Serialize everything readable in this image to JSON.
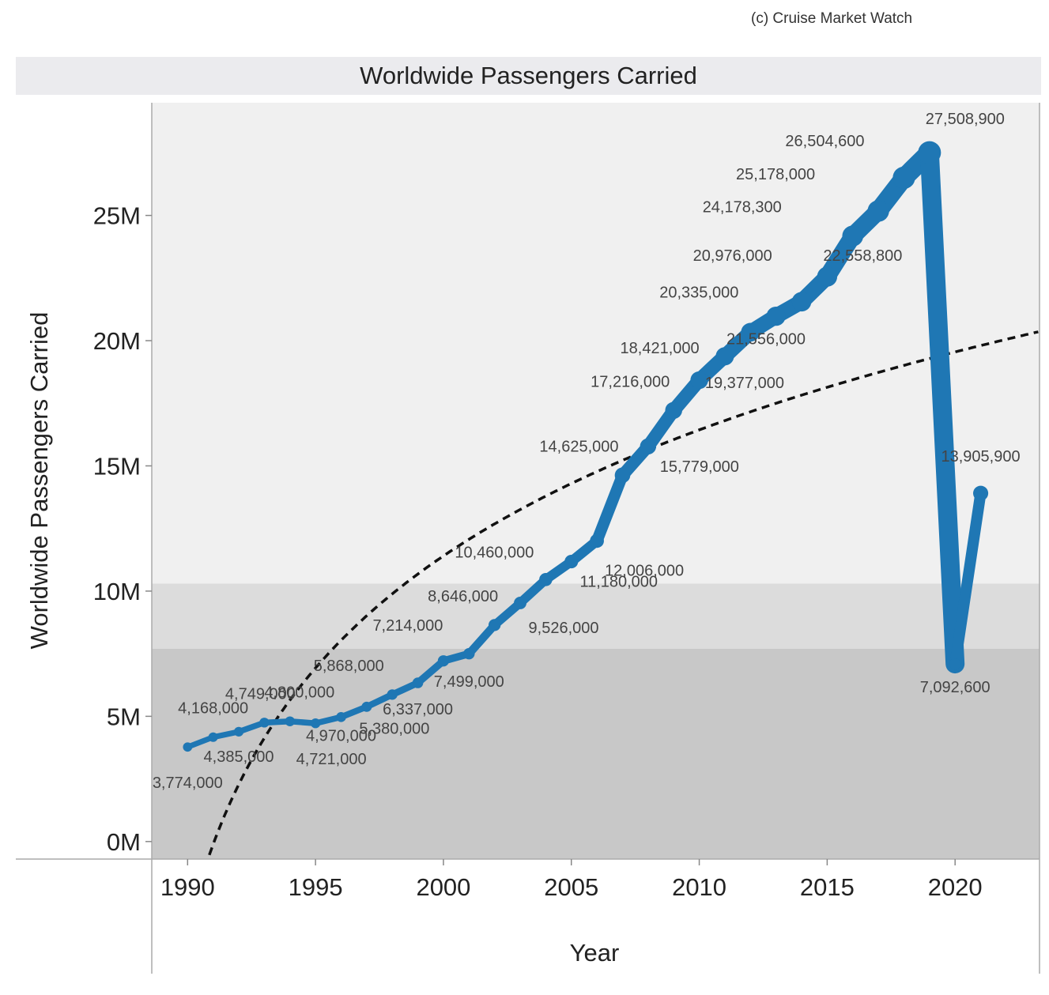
{
  "credit": "(c) Cruise Market Watch",
  "colors": {
    "line": "#1f77b4",
    "trend": "#111111",
    "band_top": "#f0f0f0",
    "band_mid": "#dcdcdc",
    "band_low": "#c8c8c8",
    "title_bar": "#ebebee"
  },
  "chart_data": {
    "type": "line",
    "title": "Worldwide Passengers Carried",
    "xlabel": "Year",
    "ylabel": "Worldwide Passengers Carried",
    "xlim": [
      1988.6,
      2023.3
    ],
    "ylim": [
      -700000,
      29500000
    ],
    "x_ticks": [
      "1990",
      "1995",
      "2000",
      "2005",
      "2010",
      "2015",
      "2020"
    ],
    "y_ticks": [
      "0M",
      "5M",
      "10M",
      "15M",
      "20M",
      "25M"
    ],
    "reference_bands": [
      10300000,
      7700000
    ],
    "trend_line": "logarithmic",
    "series": [
      {
        "values": [
          {
            "x": 1990,
            "y": 3774000,
            "label": "3,774,000"
          },
          {
            "x": 1991,
            "y": 4168000,
            "label": "4,168,000"
          },
          {
            "x": 1992,
            "y": 4385000,
            "label": "4,385,000"
          },
          {
            "x": 1993,
            "y": 4749000,
            "label": "4,749,000"
          },
          {
            "x": 1994,
            "y": 4800000,
            "label": "4,800,000"
          },
          {
            "x": 1995,
            "y": 4721000,
            "label": "4,721,000"
          },
          {
            "x": 1996,
            "y": 4970000,
            "label": "4,970,000"
          },
          {
            "x": 1997,
            "y": 5380000,
            "label": "5,380,000"
          },
          {
            "x": 1998,
            "y": 5868000,
            "label": "5,868,000"
          },
          {
            "x": 1999,
            "y": 6337000,
            "label": "6,337,000"
          },
          {
            "x": 2000,
            "y": 7214000,
            "label": "7,214,000"
          },
          {
            "x": 2001,
            "y": 7499000,
            "label": "7,499,000"
          },
          {
            "x": 2002,
            "y": 8646000,
            "label": "8,646,000"
          },
          {
            "x": 2003,
            "y": 9526000,
            "label": "9,526,000"
          },
          {
            "x": 2004,
            "y": 10460000,
            "label": "10,460,000"
          },
          {
            "x": 2005,
            "y": 11180000,
            "label": "11,180,000"
          },
          {
            "x": 2006,
            "y": 12006000,
            "label": "12,006,000"
          },
          {
            "x": 2007,
            "y": 14625000,
            "label": "14,625,000"
          },
          {
            "x": 2008,
            "y": 15779000,
            "label": "15,779,000"
          },
          {
            "x": 2009,
            "y": 17216000,
            "label": "17,216,000"
          },
          {
            "x": 2010,
            "y": 18421000,
            "label": "18,421,000"
          },
          {
            "x": 2011,
            "y": 19377000,
            "label": "19,377,000"
          },
          {
            "x": 2012,
            "y": 20335000,
            "label": "20,335,000"
          },
          {
            "x": 2013,
            "y": 20976000,
            "label": "20,976,000"
          },
          {
            "x": 2014,
            "y": 21556000,
            "label": "21,556,000"
          },
          {
            "x": 2015,
            "y": 22558800,
            "label": "22,558,800"
          },
          {
            "x": 2016,
            "y": 24178300,
            "label": "24,178,300"
          },
          {
            "x": 2017,
            "y": 25178000,
            "label": "25,178,000"
          },
          {
            "x": 2018,
            "y": 26504600,
            "label": "26,504,600"
          },
          {
            "x": 2019,
            "y": 27508900,
            "label": "27,508,900"
          },
          {
            "x": 2020,
            "y": 7092600,
            "label": "7,092,600"
          },
          {
            "x": 2021,
            "y": 13905900,
            "label": "13,905,900"
          }
        ]
      }
    ]
  }
}
